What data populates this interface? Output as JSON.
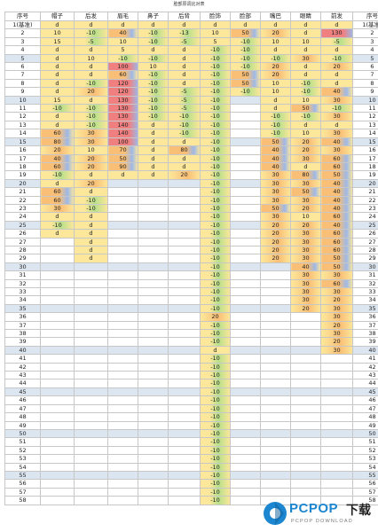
{
  "title": "脸部原调比对表",
  "headers": [
    "序号",
    "帽子",
    "后发",
    "眉毛",
    "鼻子",
    "后背",
    "脸饰",
    "脸部",
    "嘴巴",
    "眼睛",
    "前发",
    "序号"
  ],
  "rows": [
    {
      "no": "1(基准)",
      "v": [
        "d",
        "d",
        "d",
        "d",
        "d",
        "d",
        "d",
        "d",
        "d",
        "d"
      ]
    },
    {
      "no": "2",
      "v": [
        "10",
        "-10",
        "40",
        "-10",
        "-13",
        "10",
        "50",
        "20",
        "d",
        "130"
      ]
    },
    {
      "no": "3",
      "v": [
        "15",
        "-5",
        "10",
        "-10",
        "-5",
        "5",
        "-10",
        "10",
        "10",
        "-5"
      ]
    },
    {
      "no": "4",
      "v": [
        "d",
        "d",
        "5",
        "d",
        "d",
        "-10",
        "-10",
        "d",
        "d",
        "d"
      ]
    },
    {
      "no": "5",
      "v": [
        "d",
        "10",
        "-10",
        "-10",
        "d",
        "-10",
        "-10",
        "-10",
        "30",
        "-10"
      ]
    },
    {
      "no": "6",
      "v": [
        "d",
        "d",
        "100",
        "10",
        "d",
        "-10",
        "-10",
        "20",
        "d",
        "20"
      ]
    },
    {
      "no": "7",
      "v": [
        "d",
        "d",
        "60",
        "-10",
        "d",
        "-10",
        "50",
        "20",
        "d",
        "d"
      ]
    },
    {
      "no": "8",
      "v": [
        "d",
        "-10",
        "120",
        "-10",
        "d",
        "-10",
        "50",
        "10",
        "-10",
        "d"
      ]
    },
    {
      "no": "9",
      "v": [
        "d",
        "20",
        "120",
        "-10",
        "-5",
        "-10",
        "-10",
        "10",
        "-10",
        "40"
      ]
    },
    {
      "no": "10",
      "v": [
        "15",
        "d",
        "130",
        "-10",
        "-5",
        "-10",
        "",
        "d",
        "10",
        "30"
      ]
    },
    {
      "no": "11",
      "v": [
        "-10",
        "-10",
        "130",
        "-10",
        "-5",
        "-10",
        "",
        "d",
        "50",
        "-10"
      ]
    },
    {
      "no": "12",
      "v": [
        "d",
        "-10",
        "130",
        "-10",
        "-10",
        "-10",
        "",
        "-10",
        "-10",
        "30"
      ]
    },
    {
      "no": "13",
      "v": [
        "d",
        "-10",
        "140",
        "d",
        "-10",
        "-10",
        "",
        "-10",
        "d",
        "d"
      ]
    },
    {
      "no": "14",
      "v": [
        "60",
        "30",
        "140",
        "d",
        "-10",
        "-10",
        "",
        "-10",
        "10",
        "30"
      ]
    },
    {
      "no": "15",
      "v": [
        "80",
        "30",
        "100",
        "d",
        "d",
        "-10",
        "",
        "50",
        "20",
        "40"
      ]
    },
    {
      "no": "16",
      "v": [
        "20",
        "10",
        "70",
        "d",
        "80",
        "-10",
        "",
        "40",
        "20",
        "30"
      ]
    },
    {
      "no": "17",
      "v": [
        "40",
        "20",
        "50",
        "d",
        "d",
        "-10",
        "",
        "40",
        "30",
        "60"
      ]
    },
    {
      "no": "18",
      "v": [
        "60",
        "20",
        "90",
        "d",
        "d",
        "-10",
        "",
        "40",
        "d",
        "60"
      ]
    },
    {
      "no": "19",
      "v": [
        "-10",
        "d",
        "d",
        "d",
        "20",
        "-10",
        "",
        "30",
        "80",
        "50"
      ]
    },
    {
      "no": "20",
      "v": [
        "d",
        "20",
        "",
        "",
        "",
        "-10",
        "",
        "30",
        "30",
        "40"
      ]
    },
    {
      "no": "21",
      "v": [
        "60",
        "d",
        "",
        "",
        "",
        "-10",
        "",
        "30",
        "50",
        "40"
      ]
    },
    {
      "no": "22",
      "v": [
        "60",
        "-10",
        "",
        "",
        "",
        "-10",
        "",
        "30",
        "30",
        "40"
      ]
    },
    {
      "no": "23",
      "v": [
        "30",
        "-10",
        "",
        "",
        "",
        "-10",
        "",
        "50",
        "20",
        "40"
      ]
    },
    {
      "no": "24",
      "v": [
        "d",
        "d",
        "",
        "",
        "",
        "-10",
        "",
        "30",
        "10",
        "60"
      ]
    },
    {
      "no": "25",
      "v": [
        "-10",
        "d",
        "",
        "",
        "",
        "-10",
        "",
        "20",
        "20",
        "40"
      ]
    },
    {
      "no": "26",
      "v": [
        "d",
        "d",
        "",
        "",
        "",
        "-10",
        "",
        "20",
        "30",
        "60"
      ]
    },
    {
      "no": "27",
      "v": [
        "",
        "d",
        "",
        "",
        "",
        "-10",
        "",
        "20",
        "30",
        "60"
      ]
    },
    {
      "no": "28",
      "v": [
        "",
        "d",
        "",
        "",
        "",
        "-10",
        "",
        "20",
        "30",
        "60"
      ]
    },
    {
      "no": "29",
      "v": [
        "",
        "d",
        "",
        "",
        "",
        "-10",
        "",
        "20",
        "30",
        "50"
      ]
    },
    {
      "no": "30",
      "v": [
        "",
        "",
        "",
        "",
        "",
        "-10",
        "",
        "",
        "40",
        "50"
      ]
    },
    {
      "no": "31",
      "v": [
        "",
        "",
        "",
        "",
        "",
        "-10",
        "",
        "",
        "30",
        "30"
      ]
    },
    {
      "no": "32",
      "v": [
        "",
        "",
        "",
        "",
        "",
        "-10",
        "",
        "",
        "30",
        "60"
      ]
    },
    {
      "no": "33",
      "v": [
        "",
        "",
        "",
        "",
        "",
        "-10",
        "",
        "",
        "30",
        "30"
      ]
    },
    {
      "no": "34",
      "v": [
        "",
        "",
        "",
        "",
        "",
        "-10",
        "",
        "",
        "30",
        "20"
      ]
    },
    {
      "no": "35",
      "v": [
        "",
        "",
        "",
        "",
        "",
        "-10",
        "",
        "",
        "20",
        "30"
      ]
    },
    {
      "no": "36",
      "v": [
        "",
        "",
        "",
        "",
        "",
        "20",
        "",
        "",
        "",
        "30"
      ]
    },
    {
      "no": "37",
      "v": [
        "",
        "",
        "",
        "",
        "",
        "-10",
        "",
        "",
        "",
        "20"
      ]
    },
    {
      "no": "38",
      "v": [
        "",
        "",
        "",
        "",
        "",
        "-10",
        "",
        "",
        "",
        "30"
      ]
    },
    {
      "no": "39",
      "v": [
        "",
        "",
        "",
        "",
        "",
        "-10",
        "",
        "",
        "",
        "20"
      ]
    },
    {
      "no": "40",
      "v": [
        "",
        "",
        "",
        "",
        "",
        "d",
        "",
        "",
        "",
        "30"
      ]
    },
    {
      "no": "41",
      "v": [
        "",
        "",
        "",
        "",
        "",
        "-10",
        "",
        "",
        "",
        ""
      ]
    },
    {
      "no": "42",
      "v": [
        "",
        "",
        "",
        "",
        "",
        "-10",
        "",
        "",
        "",
        ""
      ]
    },
    {
      "no": "43",
      "v": [
        "",
        "",
        "",
        "",
        "",
        "-10",
        "",
        "",
        "",
        ""
      ]
    },
    {
      "no": "44",
      "v": [
        "",
        "",
        "",
        "",
        "",
        "-10",
        "",
        "",
        "",
        ""
      ]
    },
    {
      "no": "45",
      "v": [
        "",
        "",
        "",
        "",
        "",
        "-10",
        "",
        "",
        "",
        ""
      ]
    },
    {
      "no": "46",
      "v": [
        "",
        "",
        "",
        "",
        "",
        "-10",
        "",
        "",
        "",
        ""
      ]
    },
    {
      "no": "47",
      "v": [
        "",
        "",
        "",
        "",
        "",
        "-10",
        "",
        "",
        "",
        ""
      ]
    },
    {
      "no": "48",
      "v": [
        "",
        "",
        "",
        "",
        "",
        "-10",
        "",
        "",
        "",
        ""
      ]
    },
    {
      "no": "49",
      "v": [
        "",
        "",
        "",
        "",
        "",
        "-10",
        "",
        "",
        "",
        ""
      ]
    },
    {
      "no": "50",
      "v": [
        "",
        "",
        "",
        "",
        "",
        "-10",
        "",
        "",
        "",
        ""
      ]
    },
    {
      "no": "51",
      "v": [
        "",
        "",
        "",
        "",
        "",
        "-10",
        "",
        "",
        "",
        ""
      ]
    },
    {
      "no": "52",
      "v": [
        "",
        "",
        "",
        "",
        "",
        "-10",
        "",
        "",
        "",
        ""
      ]
    },
    {
      "no": "53",
      "v": [
        "",
        "",
        "",
        "",
        "",
        "-10",
        "",
        "",
        "",
        ""
      ]
    },
    {
      "no": "54",
      "v": [
        "",
        "",
        "",
        "",
        "",
        "-10",
        "",
        "",
        "",
        ""
      ]
    },
    {
      "no": "55",
      "v": [
        "",
        "",
        "",
        "",
        "",
        "-10",
        "",
        "",
        "",
        ""
      ]
    },
    {
      "no": "56",
      "v": [
        "",
        "",
        "",
        "",
        "",
        "-10",
        "",
        "",
        "",
        ""
      ]
    },
    {
      "no": "57",
      "v": [
        "",
        "",
        "",
        "",
        "",
        "-10",
        "",
        "",
        "",
        ""
      ]
    },
    {
      "no": "58",
      "v": [
        "",
        "",
        "",
        "",
        "",
        "-10",
        "",
        "",
        "",
        ""
      ]
    }
  ],
  "highlight_rows": [
    "5",
    "10",
    "15",
    "20",
    "25",
    "30",
    "35",
    "40",
    "45",
    "50",
    "55"
  ],
  "logo": {
    "main": "PCPOP",
    "suffix": "下载",
    "sub": "PCPOP DOWNLOAD"
  },
  "colors": {
    "accent_yellow": "#fde79a",
    "accent_orange": "#f9bf76",
    "accent_red": "#f08080",
    "accent_green": "#b8e08a",
    "accent_blue": "#9db8e8",
    "highlight": "#dce6f1",
    "logo_blue": "#1c86d0"
  }
}
